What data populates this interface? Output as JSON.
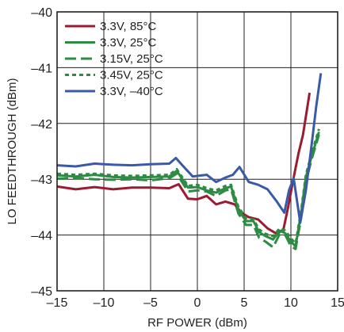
{
  "chart_data": {
    "type": "line",
    "title": "",
    "xlabel": "RF POWER (dBm)",
    "ylabel": "LO FEEDTHROUGH (dBm)",
    "xlim": [
      -15,
      15
    ],
    "ylim": [
      -45,
      -40
    ],
    "x_ticks": [
      -15,
      -10,
      -5,
      0,
      5,
      10,
      15
    ],
    "y_ticks": [
      -45,
      -44,
      -43,
      -42,
      -41,
      -40
    ],
    "x_tick_labels": [
      "–15",
      "–10",
      "–5",
      "0",
      "5",
      "10",
      "15"
    ],
    "y_tick_labels": [
      "–45",
      "–44",
      "–43",
      "–42",
      "–41",
      "–40"
    ],
    "grid": true,
    "legend_position": "top-left",
    "series": [
      {
        "name": "3.3V, 85°C",
        "color": "#9b1b30",
        "dash": "solid",
        "points": [
          [
            -15,
            -43.13
          ],
          [
            -13,
            -43.18
          ],
          [
            -11,
            -43.14
          ],
          [
            -9,
            -43.18
          ],
          [
            -7,
            -43.15
          ],
          [
            -5,
            -43.15
          ],
          [
            -3,
            -43.16
          ],
          [
            -2,
            -43.09
          ],
          [
            -1,
            -43.35
          ],
          [
            0,
            -43.36
          ],
          [
            1,
            -43.3
          ],
          [
            2,
            -43.45
          ],
          [
            3,
            -43.4
          ],
          [
            4,
            -43.45
          ],
          [
            4.7,
            -43.6
          ],
          [
            5.5,
            -43.68
          ],
          [
            6.5,
            -43.72
          ],
          [
            7.5,
            -43.88
          ],
          [
            8.5,
            -43.98
          ],
          [
            9.2,
            -43.9
          ],
          [
            9.7,
            -43.5
          ],
          [
            10.2,
            -43.05
          ],
          [
            10.8,
            -42.55
          ],
          [
            11.3,
            -42.2
          ],
          [
            12,
            -41.45
          ]
        ]
      },
      {
        "name": "3.3V, 25°C",
        "color": "#2e8b43",
        "dash": "solid",
        "points": [
          [
            -15,
            -42.93
          ],
          [
            -13,
            -42.95
          ],
          [
            -11,
            -42.92
          ],
          [
            -9,
            -42.96
          ],
          [
            -7,
            -42.97
          ],
          [
            -5,
            -42.96
          ],
          [
            -3,
            -42.95
          ],
          [
            -2.2,
            -42.85
          ],
          [
            -1,
            -43.15
          ],
          [
            0,
            -43.14
          ],
          [
            1,
            -43.2
          ],
          [
            2,
            -43.24
          ],
          [
            3,
            -43.16
          ],
          [
            3.6,
            -43.13
          ],
          [
            4.4,
            -43.55
          ],
          [
            5.2,
            -43.75
          ],
          [
            6,
            -43.75
          ],
          [
            6.6,
            -43.95
          ],
          [
            7.3,
            -44.02
          ],
          [
            8.1,
            -44.08
          ],
          [
            8.8,
            -43.92
          ],
          [
            9.4,
            -43.97
          ],
          [
            10,
            -44.12
          ],
          [
            10.5,
            -44.2
          ],
          [
            11.1,
            -43.6
          ],
          [
            11.6,
            -42.96
          ],
          [
            12.2,
            -42.6
          ],
          [
            13,
            -42.15
          ]
        ]
      },
      {
        "name": "3.15V, 25°C",
        "color": "#2e8b43",
        "dash": "long",
        "points": [
          [
            -15,
            -42.99
          ],
          [
            -13,
            -42.98
          ],
          [
            -11,
            -43.0
          ],
          [
            -9,
            -43.01
          ],
          [
            -7,
            -43.0
          ],
          [
            -5,
            -43.02
          ],
          [
            -3,
            -42.98
          ],
          [
            -2.2,
            -42.9
          ],
          [
            -1,
            -43.22
          ],
          [
            0,
            -43.2
          ],
          [
            1,
            -43.22
          ],
          [
            2,
            -43.3
          ],
          [
            3,
            -43.2
          ],
          [
            3.6,
            -43.18
          ],
          [
            4.4,
            -43.62
          ],
          [
            5.2,
            -43.82
          ],
          [
            6,
            -43.82
          ],
          [
            6.6,
            -44.05
          ],
          [
            7.3,
            -44.12
          ],
          [
            8.1,
            -44.22
          ],
          [
            8.8,
            -43.98
          ],
          [
            9.4,
            -44.0
          ],
          [
            10,
            -44.2
          ],
          [
            10.5,
            -44.25
          ],
          [
            11.1,
            -43.68
          ],
          [
            11.6,
            -43.05
          ],
          [
            12.2,
            -42.65
          ],
          [
            13,
            -42.2
          ]
        ]
      },
      {
        "name": "3.45V, 25°C",
        "color": "#2e8b43",
        "dash": "short",
        "points": [
          [
            -15,
            -42.9
          ],
          [
            -13,
            -42.92
          ],
          [
            -11,
            -42.9
          ],
          [
            -9,
            -42.93
          ],
          [
            -7,
            -42.94
          ],
          [
            -5,
            -42.93
          ],
          [
            -3,
            -42.92
          ],
          [
            -2.2,
            -42.82
          ],
          [
            -1,
            -43.12
          ],
          [
            0,
            -43.1
          ],
          [
            1,
            -43.16
          ],
          [
            2,
            -43.2
          ],
          [
            3,
            -43.12
          ],
          [
            3.6,
            -43.1
          ],
          [
            4.4,
            -43.5
          ],
          [
            5.2,
            -43.7
          ],
          [
            6,
            -43.72
          ],
          [
            6.6,
            -43.9
          ],
          [
            7.3,
            -43.98
          ],
          [
            8.1,
            -44.02
          ],
          [
            8.8,
            -43.88
          ],
          [
            9.4,
            -43.92
          ],
          [
            10,
            -44.06
          ],
          [
            10.5,
            -44.15
          ],
          [
            11.1,
            -43.55
          ],
          [
            11.6,
            -42.92
          ],
          [
            12.2,
            -42.55
          ],
          [
            13,
            -42.1
          ]
        ]
      },
      {
        "name": "3.3V, –40°C",
        "color": "#3a59a6",
        "dash": "solid",
        "points": [
          [
            -15,
            -42.75
          ],
          [
            -13,
            -42.77
          ],
          [
            -11,
            -42.72
          ],
          [
            -9,
            -42.74
          ],
          [
            -7,
            -42.75
          ],
          [
            -5,
            -42.73
          ],
          [
            -3,
            -42.72
          ],
          [
            -2.3,
            -42.62
          ],
          [
            -1.6,
            -42.75
          ],
          [
            -0.5,
            -42.95
          ],
          [
            1,
            -42.92
          ],
          [
            2,
            -43.05
          ],
          [
            3,
            -42.97
          ],
          [
            3.8,
            -42.92
          ],
          [
            4.5,
            -42.78
          ],
          [
            5.5,
            -43.05
          ],
          [
            6.5,
            -43.1
          ],
          [
            7.5,
            -43.18
          ],
          [
            8.5,
            -43.4
          ],
          [
            9.3,
            -43.6
          ],
          [
            9.8,
            -43.2
          ],
          [
            10.3,
            -42.98
          ],
          [
            11,
            -43.78
          ],
          [
            11.6,
            -43.2
          ],
          [
            12.2,
            -42.4
          ],
          [
            12.7,
            -41.7
          ],
          [
            13.2,
            -41.1
          ]
        ]
      }
    ]
  }
}
